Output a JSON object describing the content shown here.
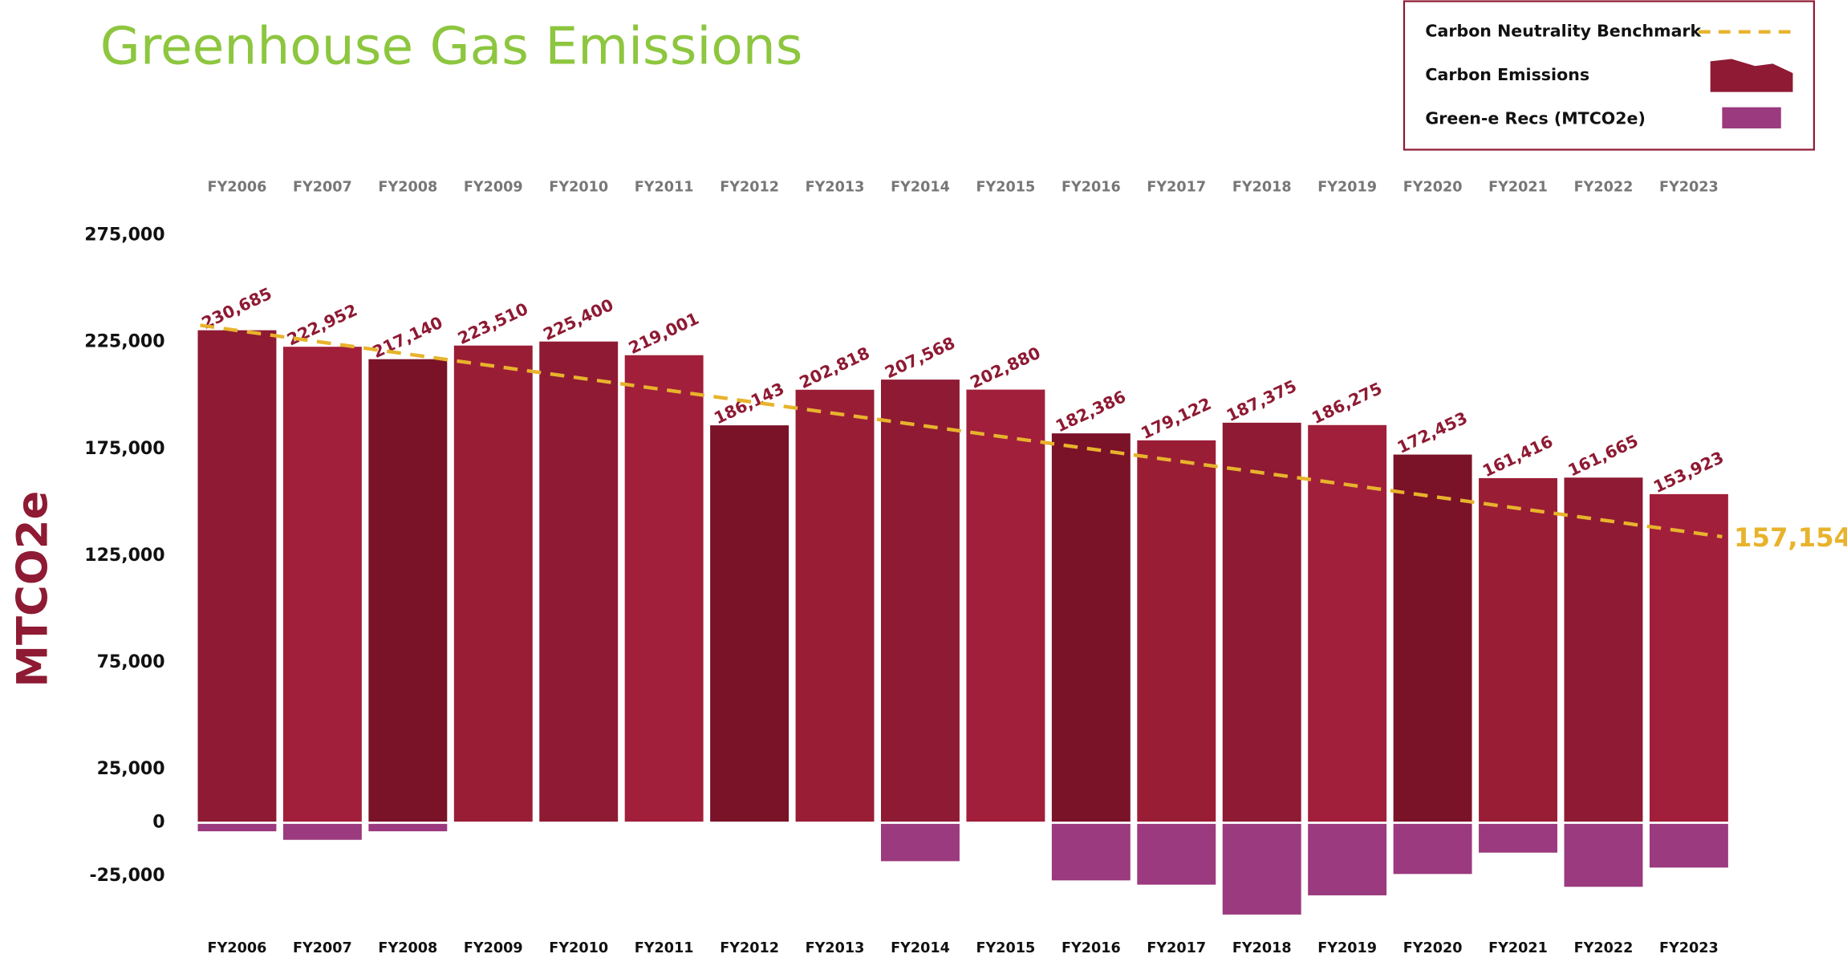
{
  "chart_data": {
    "type": "bar",
    "title": "Greenhouse Gas Emissions",
    "y_label": "MTCO2e",
    "categories": [
      "FY2006",
      "FY2007",
      "FY2008",
      "FY2009",
      "FY2010",
      "FY2011",
      "FY2012",
      "FY2013",
      "FY2014",
      "FY2015",
      "FY2016",
      "FY2017",
      "FY2018",
      "FY2019",
      "FY2020",
      "FY2021",
      "FY2022",
      "FY2023"
    ],
    "series": [
      {
        "name": "Carbon Emissions",
        "colors": [
          "#8e1a33",
          "#a11f3a",
          "#7a1228",
          "#9a1d36"
        ],
        "values": [
          230685,
          222952,
          217140,
          223510,
          225400,
          219001,
          186143,
          202818,
          207568,
          202880,
          182386,
          179122,
          187375,
          186275,
          172453,
          161416,
          161665,
          153923
        ],
        "value_labels": [
          "230,685",
          "222,952",
          "217,140",
          "223,510",
          "225,400",
          "219,001",
          "186,143",
          "202,818",
          "207,568",
          "202,880",
          "182,386",
          "179,122",
          "187,375",
          "186,275",
          "172,453",
          "161,416",
          "161,665",
          "153,923"
        ]
      },
      {
        "name": "Green-e Recs  (MTCO2e)",
        "color": "#9b3a7e",
        "values": [
          -4000,
          -8000,
          -4000,
          0,
          0,
          0,
          0,
          0,
          -18000,
          0,
          -27000,
          -29000,
          -43000,
          -34000,
          -24000,
          -14000,
          -30000,
          -21000
        ]
      }
    ],
    "benchmark": {
      "name": "Carbon Neutrality Benchmark",
      "color": "#e8b32c",
      "start": 233000,
      "end": 134000,
      "label": "157,154"
    },
    "ylim": [
      -45000,
      275000
    ],
    "yticks": [
      {
        "value": 275000,
        "label": "275,000"
      },
      {
        "value": 225000,
        "label": "225,000"
      },
      {
        "value": 175000,
        "label": "175,000"
      },
      {
        "value": 125000,
        "label": "125,000"
      },
      {
        "value": 75000,
        "label": "75,000"
      },
      {
        "value": 25000,
        "label": "25,000"
      },
      0,
      {
        "value": -25000,
        "label": "-25,000"
      }
    ]
  }
}
